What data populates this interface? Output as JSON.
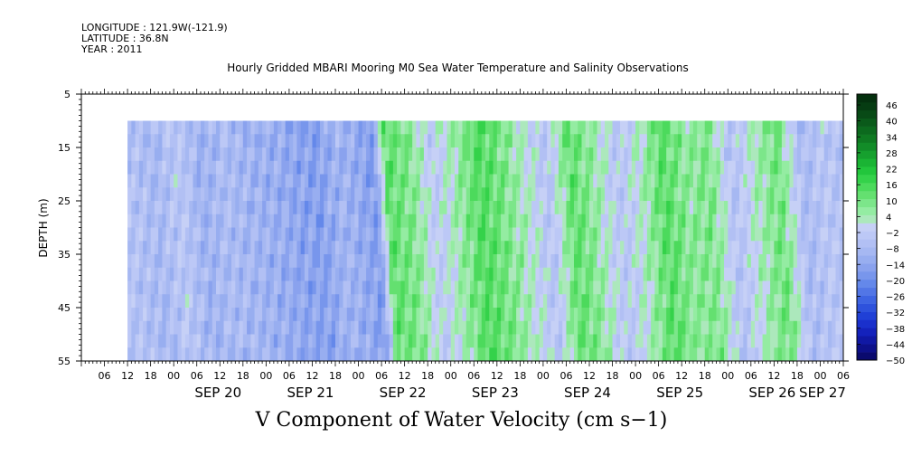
{
  "header": {
    "longitude": "LONGITUDE : 121.9W(-121.9)",
    "latitude": "LATITUDE : 36.8N",
    "year": "YEAR : 2011"
  },
  "chart_data": {
    "type": "heatmap",
    "title": "Hourly Gridded MBARI Mooring M0 Sea Water Temperature and Salinity Observations",
    "xlabel": "V Component of Water Velocity (cm s−1)",
    "ylabel": "DEPTH (m)",
    "ylim": [
      55,
      5
    ],
    "yticks": [
      5,
      15,
      25,
      35,
      45,
      55
    ],
    "x_start": "2011-09-19 00:00",
    "x_end": "2011-09-27 06:00",
    "data_start": "2011-09-19 12:00",
    "data_top_depth": 10,
    "hour_tick_labels": [
      "06",
      "12",
      "18",
      "00",
      "06",
      "12",
      "18",
      "00",
      "06",
      "12",
      "18",
      "00",
      "06",
      "12",
      "18",
      "00",
      "06",
      "12",
      "18",
      "00",
      "06",
      "12",
      "18",
      "00",
      "06",
      "12",
      "18",
      "00",
      "06",
      "12",
      "18",
      "00",
      "06"
    ],
    "day_labels": [
      "SEP 20",
      "SEP 21",
      "SEP 22",
      "SEP 23",
      "SEP 24",
      "SEP 25",
      "SEP 26",
      "SEP 27"
    ],
    "colorbar": {
      "labels": [
        "46",
        "40",
        "34",
        "28",
        "22",
        "16",
        "10",
        "4",
        "−2",
        "−8",
        "−14",
        "−20",
        "−26",
        "−32",
        "−38",
        "−44",
        "−50"
      ],
      "levels": [
        -50,
        -47,
        -44,
        -41,
        -38,
        -35,
        -32,
        -29,
        -26,
        -23,
        -20,
        -17,
        -14,
        -11,
        -8,
        -5,
        -2,
        1,
        4,
        7,
        10,
        13,
        16,
        19,
        22,
        25,
        28,
        31,
        34,
        37,
        40,
        43,
        46,
        49
      ],
      "colors": [
        "#0a0a6e",
        "#0d108a",
        "#1018a4",
        "#1422bc",
        "#1a30cc",
        "#2040d6",
        "#2e52dc",
        "#3e64e2",
        "#5276e6",
        "#6488ea",
        "#7896ec",
        "#8aa2ee",
        "#98aef0",
        "#a6b8f2",
        "#b2c0f4",
        "#bcc8f6",
        "#c6d0f6",
        "#ace8bc",
        "#94eca2",
        "#7ce68a",
        "#64e070",
        "#4cda5c",
        "#34d24a",
        "#22c63c",
        "#1ab434",
        "#16a02e",
        "#128c28",
        "#0f7a22",
        "#0c6a1e",
        "#0a5a1a",
        "#084a16",
        "#063c12",
        "#04300e"
      ]
    },
    "velocity_profile": {
      "times": [
        "2011-09-19 12:00",
        "2011-09-19 18:00",
        "2011-09-20 00:00",
        "2011-09-20 06:00",
        "2011-09-20 12:00",
        "2011-09-20 18:00",
        "2011-09-21 00:00",
        "2011-09-21 06:00",
        "2011-09-21 12:00",
        "2011-09-21 18:00",
        "2011-09-22 00:00",
        "2011-09-22 03:00",
        "2011-09-22 06:00",
        "2011-09-22 12:00",
        "2011-09-22 18:00",
        "2011-09-23 00:00",
        "2011-09-23 06:00",
        "2011-09-23 12:00",
        "2011-09-23 18:00",
        "2011-09-24 00:00",
        "2011-09-24 06:00",
        "2011-09-24 12:00",
        "2011-09-24 18:00",
        "2011-09-25 00:00",
        "2011-09-25 06:00",
        "2011-09-25 12:00",
        "2011-09-25 18:00",
        "2011-09-26 00:00",
        "2011-09-26 06:00",
        "2011-09-26 12:00",
        "2011-09-26 18:00",
        "2011-09-27 00:00",
        "2011-09-27 03:00"
      ],
      "v_cm_s": [
        -6,
        -9,
        -4,
        -11,
        -8,
        -10,
        -12,
        -14,
        -16,
        -10,
        -14,
        -17,
        12,
        8,
        -3,
        4,
        14,
        9,
        2,
        -5,
        12,
        5,
        -4,
        2,
        13,
        6,
        8,
        -6,
        3,
        10,
        -8,
        -4,
        -6
      ]
    }
  }
}
